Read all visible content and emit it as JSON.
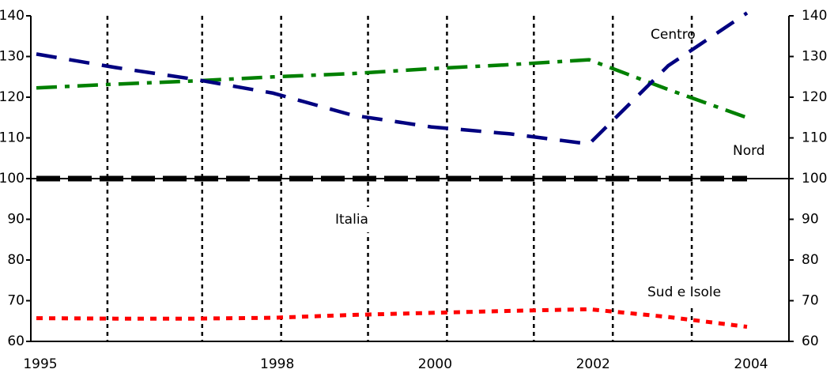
{
  "chart_data": {
    "type": "line",
    "title": "",
    "xlabel": "",
    "ylabel": "",
    "xlim": [
      1995,
      2004
    ],
    "ylim": [
      60,
      140
    ],
    "x_ticks": [
      1995,
      1998,
      2000,
      2002,
      2004
    ],
    "x_tick_labels": [
      "1995",
      "1998",
      "2000",
      "2002",
      "2004"
    ],
    "y_ticks": [
      60,
      70,
      80,
      90,
      100,
      110,
      120,
      130,
      140
    ],
    "y_tick_labels": [
      "60",
      "70",
      "80",
      "90",
      "100",
      "110",
      "120",
      "130",
      "140"
    ],
    "vertical_grid_x": [
      1995.9,
      1997.1,
      1998.1,
      1999.2,
      2000.2,
      2001.3,
      2002.3,
      2003.3
    ],
    "grid": "dotted vertical lines",
    "series": [
      {
        "name": "Nord",
        "color": "#008000",
        "dash": "dash-dot",
        "x": [
          1995,
          1996,
          1997,
          1998,
          1999,
          2000,
          2001,
          2002,
          2003,
          2004
        ],
        "y": [
          122.3,
          123.2,
          124.0,
          125.0,
          125.8,
          127.0,
          128.0,
          129.2,
          121.9,
          115.0
        ]
      },
      {
        "name": "Centro",
        "color": "#000080",
        "dash": "long-dash",
        "x": [
          1995,
          1996,
          1997,
          1998,
          1999,
          2000,
          2001,
          2002,
          2003,
          2004
        ],
        "y": [
          130.6,
          127.3,
          124.4,
          121.0,
          115.6,
          112.7,
          111.0,
          108.5,
          127.7,
          140.7
        ]
      },
      {
        "name": "Italia",
        "color": "#000000",
        "dash": "heavy-dash",
        "x": [
          1995,
          1996,
          1997,
          1998,
          1999,
          2000,
          2001,
          2002,
          2003,
          2004
        ],
        "y": [
          100,
          100,
          100,
          100,
          100,
          100,
          100,
          100,
          100,
          100
        ]
      },
      {
        "name": "Sud e Isole",
        "color": "#ff0000",
        "dash": "short-dash",
        "x": [
          1995,
          1996,
          1997,
          1998,
          1999,
          2000,
          2001,
          2002,
          2003,
          2004
        ],
        "y": [
          65.7,
          65.6,
          65.6,
          65.8,
          66.5,
          67.0,
          67.5,
          67.9,
          66.0,
          63.6
        ]
      }
    ]
  }
}
